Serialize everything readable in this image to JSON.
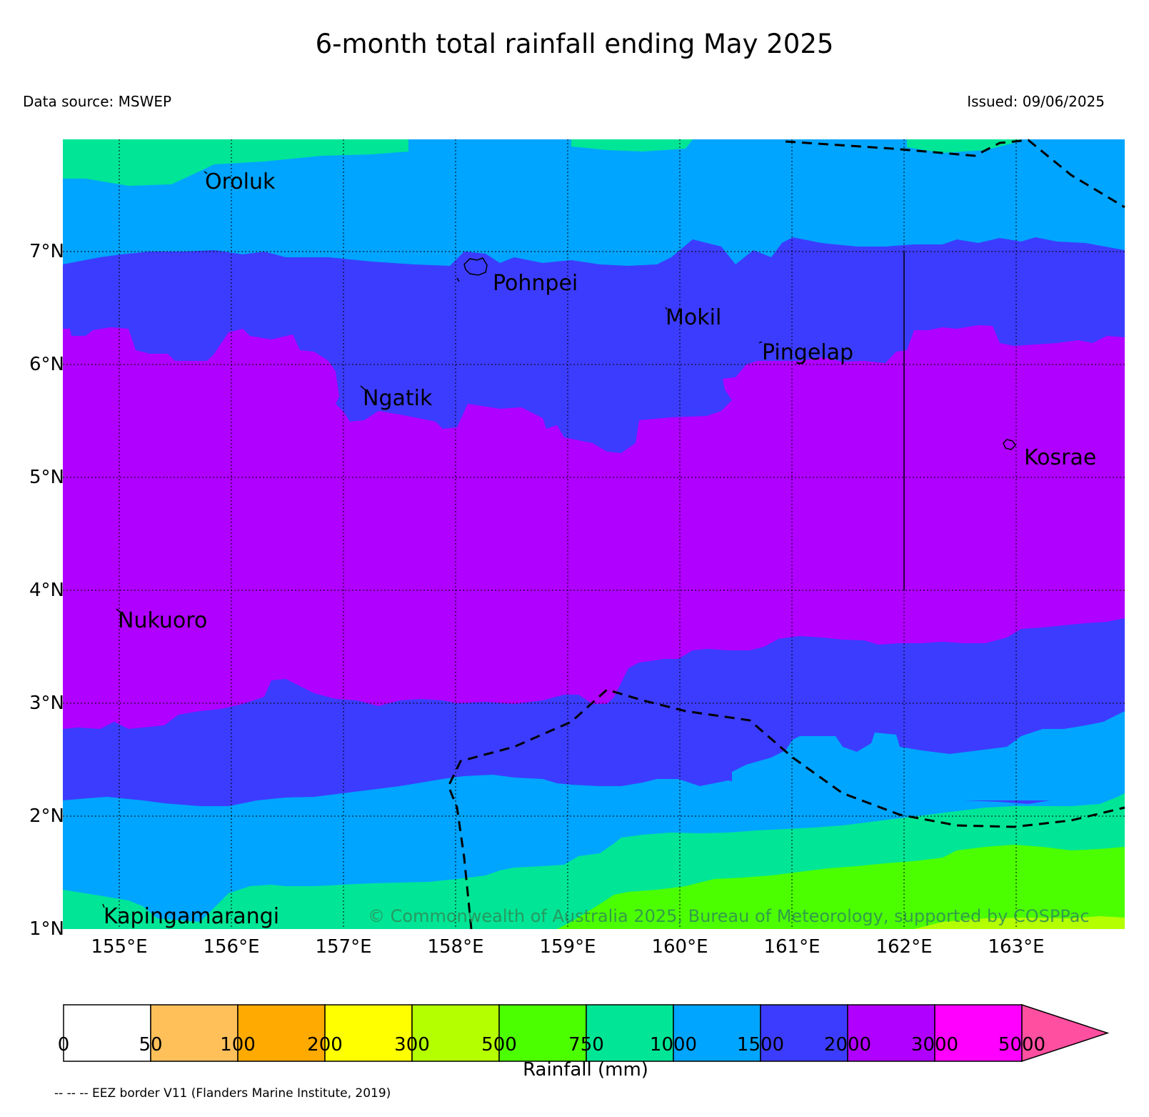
{
  "title": "6-month total rainfall ending May 2025",
  "data_source": "Data source: MSWEP",
  "issued": "Issued: 09/06/2025",
  "copyright": "© Commonwealth of Australia 2025, Bureau of Meteorology, supported by COSPPac",
  "lat_labels": [
    "1°N",
    "2°N",
    "3°N",
    "4°N",
    "5°N",
    "6°N",
    "7°N"
  ],
  "lon_labels": [
    "155°E",
    "156°E",
    "157°E",
    "158°E",
    "159°E",
    "160°E",
    "161°E",
    "162°E",
    "163°E"
  ],
  "places": [
    {
      "name": "Oroluk"
    },
    {
      "name": "Pohnpei"
    },
    {
      "name": "Mokil"
    },
    {
      "name": "Pingelap"
    },
    {
      "name": "Ngatik"
    },
    {
      "name": "Kosrae"
    },
    {
      "name": "Nukuoro"
    },
    {
      "name": "Kapingamarangi"
    }
  ],
  "colorbar": {
    "title": "Rainfall (mm)",
    "ticks": [
      "0",
      "50",
      "100",
      "200",
      "300",
      "500",
      "750",
      "1000",
      "1500",
      "2000",
      "3000",
      "5000"
    ],
    "colors": [
      "#ffffff",
      "#ffc05a",
      "#ffaa00",
      "#ffff00",
      "#b4ff00",
      "#4cff00",
      "#00e696",
      "#00a5ff",
      "#3c3cff",
      "#b000ff",
      "#ff00ff",
      "#ff4fa0"
    ]
  },
  "eez_note": "-- -- -- EEZ border V11 (Flanders Marine Institute, 2019)",
  "colors": {
    "band_300_500": "#b4ff00",
    "band_500_750": "#4cff00",
    "band_750_1000": "#00e696",
    "band_1000_1500": "#00a5ff",
    "band_1500_2000": "#3c3cff",
    "band_2000_3000": "#b000ff"
  }
}
